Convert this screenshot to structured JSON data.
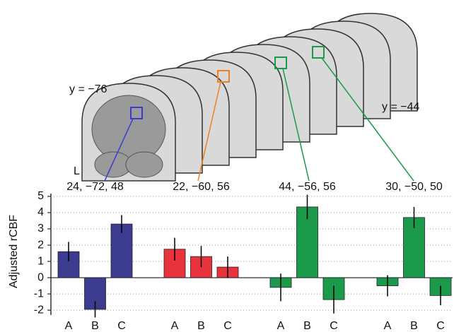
{
  "chart_data": {
    "type": "grouped-bar",
    "annotations": [
      "y = −76",
      "y = −44",
      "L"
    ],
    "y_label": "Adjusted rCBF",
    "categories": [
      "A",
      "B",
      "C"
    ],
    "series": [
      {
        "name": "24, −72, 48",
        "color": "#3b3b8f",
        "values": [
          1.6,
          -1.95,
          3.3
        ],
        "errors": [
          0.6,
          0.5,
          0.55
        ]
      },
      {
        "name": "22, −60, 56",
        "color": "#e8323c",
        "values": [
          1.75,
          1.3,
          0.65
        ],
        "errors": [
          0.7,
          0.65,
          0.65
        ]
      },
      {
        "name": "44, −56, 56",
        "color": "#1a9a4a",
        "values": [
          -0.6,
          4.35,
          -1.35
        ],
        "errors": [
          0.85,
          0.75,
          0.85
        ]
      },
      {
        "name": "30, −50, 50",
        "color": "#1a9a4a",
        "values": [
          -0.5,
          3.7,
          -1.1
        ],
        "errors": [
          0.65,
          0.65,
          0.6
        ]
      }
    ],
    "ylim": [
      -2.3,
      5
    ],
    "yticks": [
      -2,
      -1,
      0,
      1,
      2,
      3,
      4,
      5
    ],
    "grid": true
  }
}
